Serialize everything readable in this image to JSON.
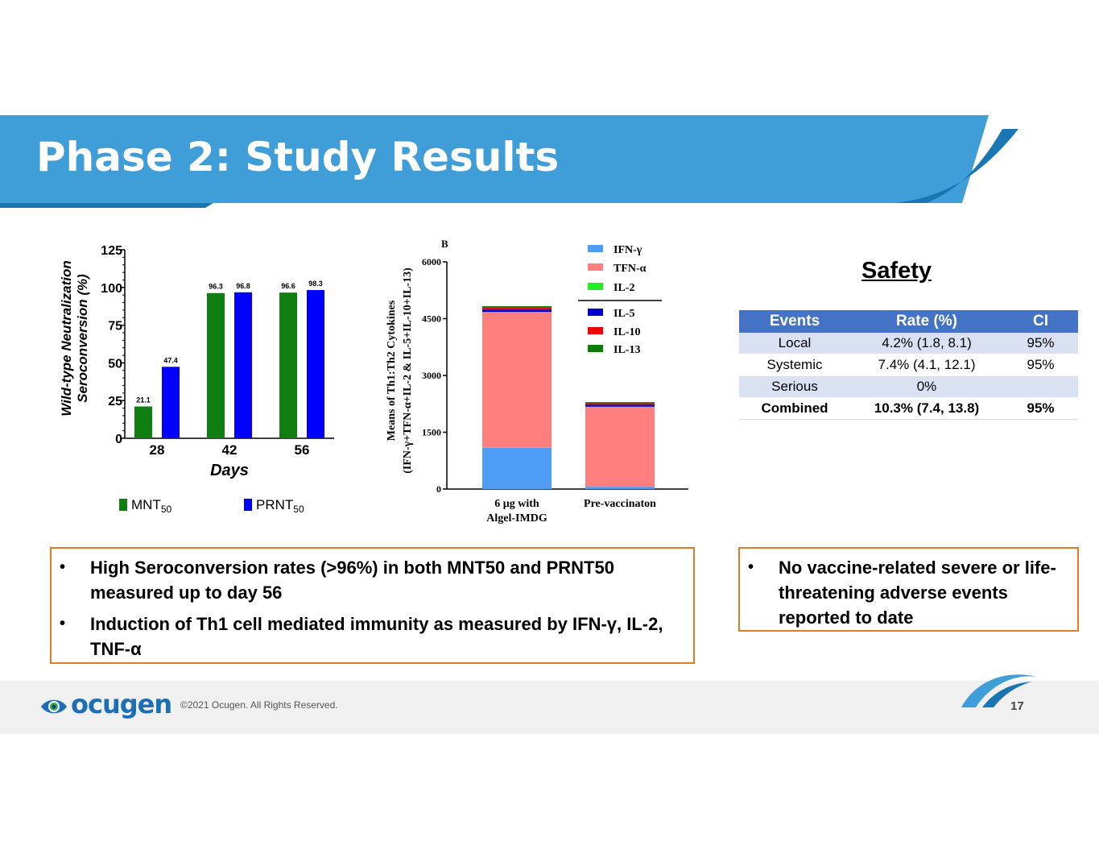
{
  "header": {
    "title": "Phase 2: Study Results"
  },
  "chart_left": {
    "type": "bar",
    "categories": [
      "28",
      "42",
      "56"
    ],
    "series": [
      {
        "name": "MNT",
        "subscript": "50",
        "color": "#0f7f12",
        "values": [
          21.1,
          96.3,
          96.6
        ]
      },
      {
        "name": "PRNT",
        "subscript": "50",
        "color": "#0000ff",
        "values": [
          47.4,
          96.8,
          98.3
        ]
      }
    ],
    "ylabel_line1": "Wild-type Neutralization",
    "ylabel_line2": "Seroconversion (%)",
    "xlabel": "Days",
    "ylim": [
      0,
      125
    ],
    "yticks": [
      "0",
      "25",
      "50",
      "75",
      "100",
      "125"
    ]
  },
  "chart_right": {
    "type": "stacked-bar",
    "panel_label": "B",
    "categories": [
      {
        "line1": "6 μg with",
        "line2": "Algel-IMDG"
      },
      {
        "line1": "Pre-vaccinaton",
        "line2": ""
      }
    ],
    "ylabel_line1": "Means of Th1:Th2 Cytokines",
    "ylabel_line2": "(IFN-γ+TFN-α+IL-2 & IL-5+IL-10+IL-13)",
    "ylim": [
      0,
      6000
    ],
    "yticks": [
      "0",
      "1500",
      "3000",
      "4500",
      "6000"
    ],
    "series": [
      {
        "name": "IFN-γ",
        "color": "#4f9cf5",
        "values": [
          1090,
          60
        ]
      },
      {
        "name": "TFN-α",
        "color": "#ff7f7f",
        "values": [
          3580,
          2110
        ]
      },
      {
        "name": "IL-2",
        "color": "#22ee22",
        "values": [
          10,
          5
        ]
      },
      {
        "name": "IL-5",
        "color": "#0000cc",
        "values": [
          60,
          50
        ]
      },
      {
        "name": "IL-10",
        "color": "#ee0000",
        "values": [
          50,
          40
        ]
      },
      {
        "name": "IL-13",
        "color": "#0a7a0a",
        "values": [
          40,
          30
        ]
      }
    ]
  },
  "safety": {
    "title": "Safety",
    "headers": [
      "Events",
      "Rate (%)",
      "CI"
    ],
    "rows": [
      {
        "event": "Local",
        "rate": "4.2% (1.8, 8.1)",
        "ci": "95%"
      },
      {
        "event": "Systemic",
        "rate": "7.4% (4.1, 12.1)",
        "ci": "95%"
      },
      {
        "event": "Serious",
        "rate": "0%",
        "ci": ""
      },
      {
        "event": "Combined",
        "rate": "10.3% (7.4, 13.8)",
        "ci": "95%"
      }
    ]
  },
  "bullets_left": [
    "High Seroconversion rates (>96%) in both MNT50 and PRNT50 measured up to day 56",
    "Induction of Th1 cell mediated immunity as measured by IFN-γ, IL-2, TNF-α"
  ],
  "bullets_right": [
    "No vaccine-related severe or life-threatening adverse events reported to date"
  ],
  "bullet_char": "•",
  "footer": {
    "logo": "ocugen",
    "copyright": "©2021  Ocugen. All Rights Reserved.",
    "page_number": "17"
  },
  "colors": {
    "banner": "#3f9dd8",
    "banner_dark": "#1a76b3",
    "box_border": "#e07a25"
  }
}
